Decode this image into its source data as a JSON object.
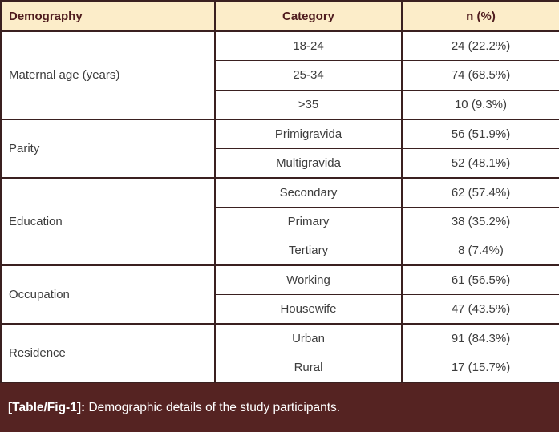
{
  "colors": {
    "header_bg": "#fcedc9",
    "border": "#3a2020",
    "caption_bg": "#552322",
    "header_text": "#4f1c1e",
    "body_text": "#3d3d3d",
    "caption_text": "#ffffff"
  },
  "table": {
    "columns": [
      "Demography",
      "Category",
      "n (%)"
    ],
    "groups": [
      {
        "label": "Maternal age (years)",
        "rows": [
          {
            "category": "18-24",
            "n": "24 (22.2%)"
          },
          {
            "category": "25-34",
            "n": "74 (68.5%)"
          },
          {
            "category": ">35",
            "n": "10 (9.3%)"
          }
        ]
      },
      {
        "label": "Parity",
        "rows": [
          {
            "category": "Primigravida",
            "n": "56 (51.9%)"
          },
          {
            "category": "Multigravida",
            "n": "52 (48.1%)"
          }
        ]
      },
      {
        "label": "Education",
        "rows": [
          {
            "category": "Secondary",
            "n": "62 (57.4%)"
          },
          {
            "category": "Primary",
            "n": "38 (35.2%)"
          },
          {
            "category": "Tertiary",
            "n": "8 (7.4%)"
          }
        ]
      },
      {
        "label": "Occupation",
        "rows": [
          {
            "category": "Working",
            "n": "61 (56.5%)"
          },
          {
            "category": "Housewife",
            "n": "47 (43.5%)"
          }
        ]
      },
      {
        "label": "Residence",
        "rows": [
          {
            "category": "Urban",
            "n": "91 (84.3%)"
          },
          {
            "category": "Rural",
            "n": "17 (15.7%)"
          }
        ]
      }
    ]
  },
  "caption": {
    "label": "[Table/Fig-1]:",
    "text": " Demographic details of the study participants."
  }
}
